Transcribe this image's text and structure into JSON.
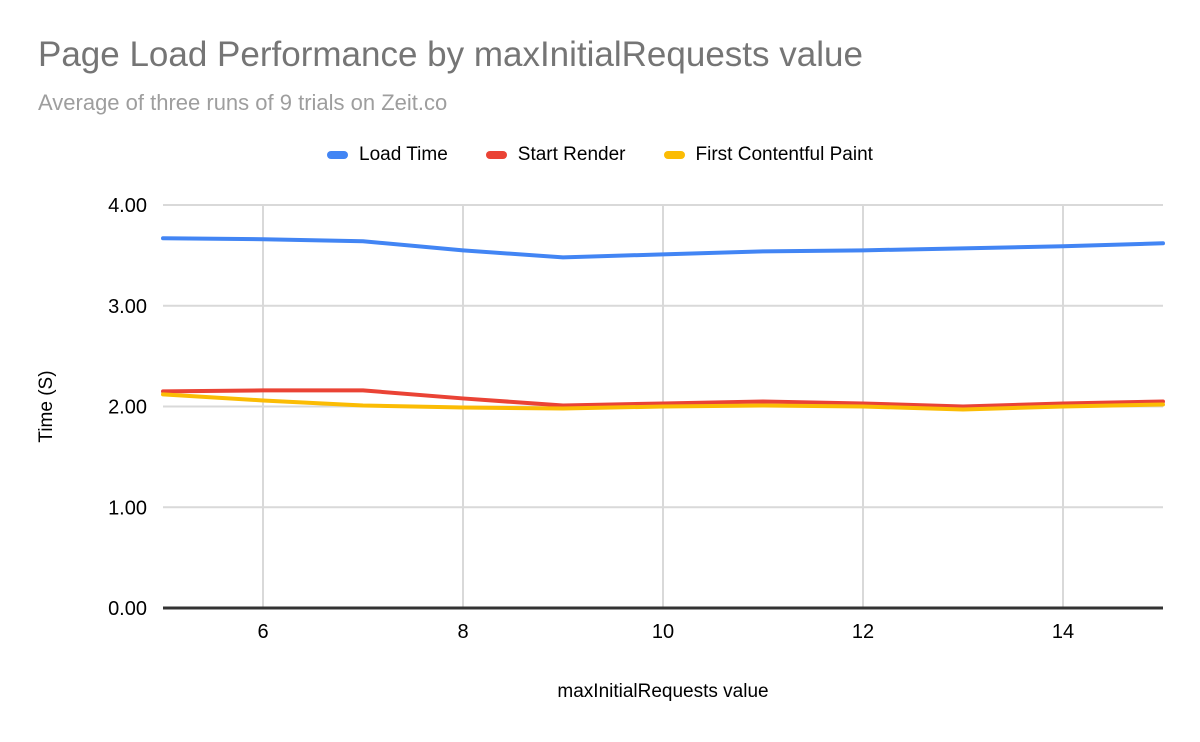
{
  "header": {
    "title": "Page Load Performance by maxInitialRequests value",
    "subtitle": "Average of three runs of 9 trials on Zeit.co",
    "title_color": "#757575",
    "subtitle_color": "#9e9e9e"
  },
  "legend": {
    "items": [
      {
        "label": "Load Time",
        "color": "#4285f4"
      },
      {
        "label": "Start Render",
        "color": "#ea4335"
      },
      {
        "label": "First Contentful Paint",
        "color": "#fbbc04"
      }
    ]
  },
  "chart_data": {
    "type": "line",
    "title": "Page Load Performance by maxInitialRequests value",
    "subtitle": "Average of three runs of 9 trials on Zeit.co",
    "xlabel": "maxInitialRequests value",
    "ylabel": "Time (S)",
    "x": [
      5,
      6,
      7,
      8,
      9,
      10,
      11,
      12,
      13,
      14,
      15
    ],
    "series": [
      {
        "name": "Load Time",
        "color": "#4285f4",
        "values": [
          3.67,
          3.66,
          3.64,
          3.55,
          3.48,
          3.51,
          3.54,
          3.55,
          3.57,
          3.59,
          3.62
        ]
      },
      {
        "name": "Start Render",
        "color": "#ea4335",
        "values": [
          2.15,
          2.16,
          2.16,
          2.08,
          2.01,
          2.03,
          2.05,
          2.03,
          2.0,
          2.03,
          2.05
        ]
      },
      {
        "name": "First Contentful Paint",
        "color": "#fbbc04",
        "values": [
          2.12,
          2.06,
          2.01,
          1.99,
          1.98,
          2.0,
          2.01,
          2.0,
          1.97,
          2.0,
          2.02
        ]
      }
    ],
    "xlim": [
      5,
      15
    ],
    "ylim": [
      0,
      4
    ],
    "x_tick_values": [
      6,
      8,
      10,
      12,
      14
    ],
    "x_tick_labels": [
      "6",
      "8",
      "10",
      "12",
      "14"
    ],
    "y_tick_values": [
      0,
      1,
      2,
      3,
      4
    ],
    "y_tick_labels": [
      "0.00",
      "1.00",
      "2.00",
      "3.00",
      "4.00"
    ],
    "grid": true,
    "legend_position": "top",
    "gridline_color": "#d9d9d9",
    "axis_line_color": "#333333",
    "tick_text_color": "#000000"
  }
}
